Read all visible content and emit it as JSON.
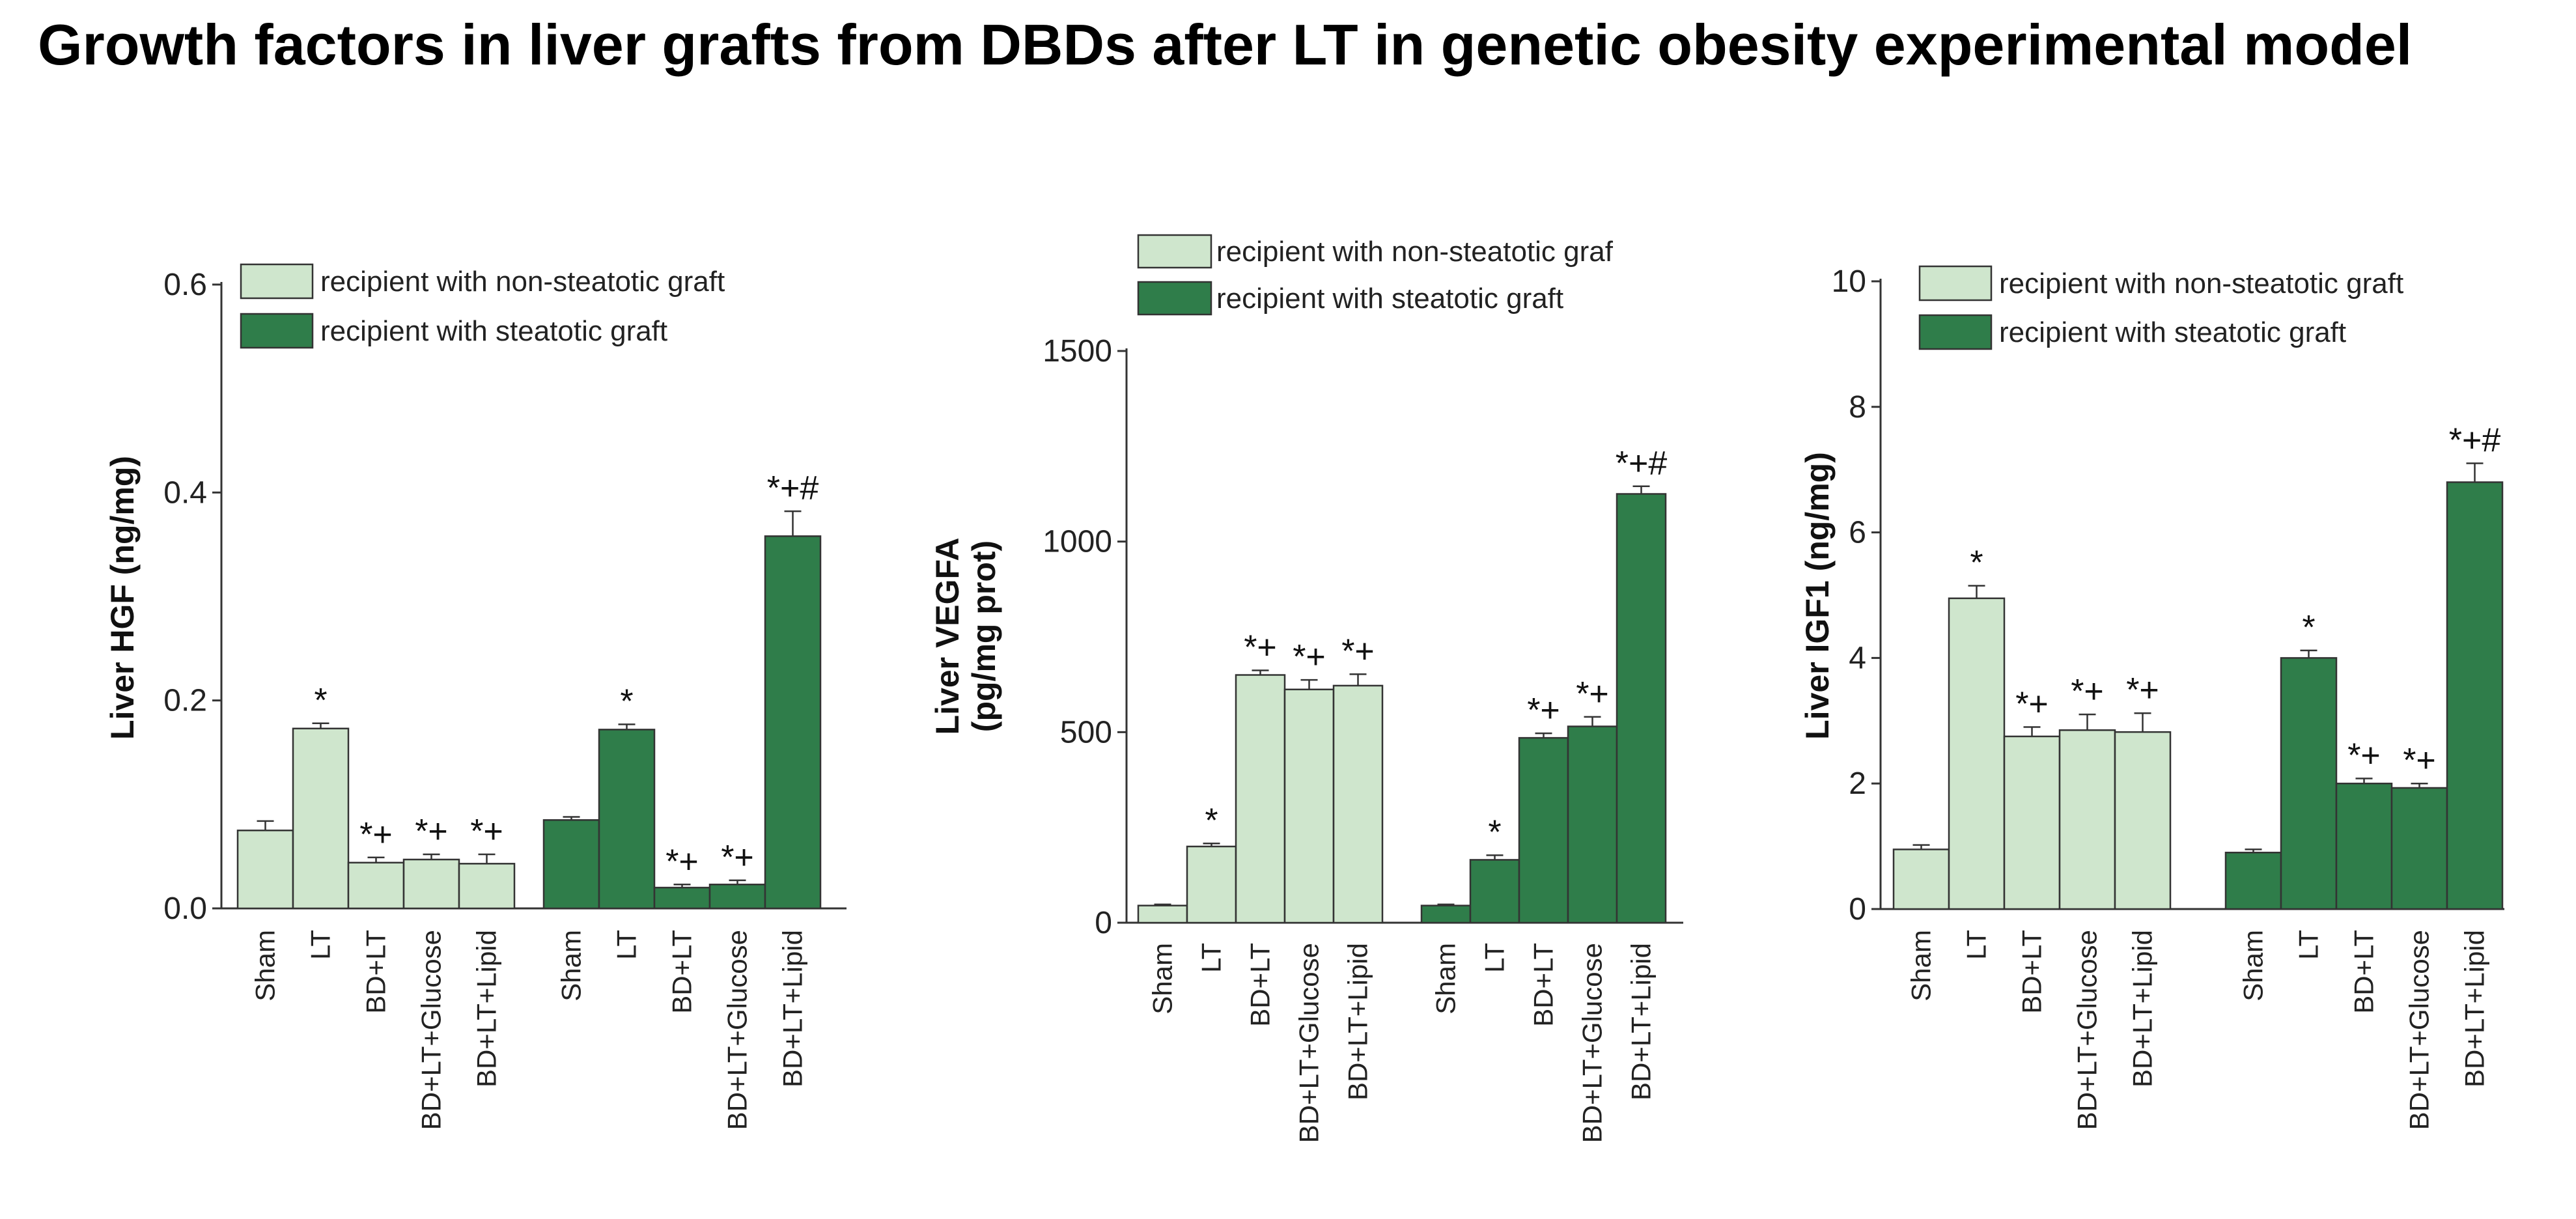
{
  "title": "Growth factors in liver grafts from DBDs after LT in genetic obesity experimental model",
  "colors": {
    "light": "#cfe6cd",
    "dark": "#2f7d4a",
    "axis": "#333333",
    "text": "#222222"
  },
  "chart_data": [
    {
      "type": "bar",
      "ylabel": [
        "Liver HGF (ng/mg)"
      ],
      "ylim": [
        0,
        0.6
      ],
      "yticks": [
        0.0,
        0.2,
        0.4,
        0.6
      ],
      "ytick_labels": [
        "0.0",
        "0.2",
        "0.4",
        "0.6"
      ],
      "legend": [
        "recipient with non-steatotic graft",
        "recipient with steatotic graft"
      ],
      "categories": [
        "Sham",
        "LT",
        "BD+LT",
        "BD+LT+Glucose",
        "BD+LT+Lipid"
      ],
      "series": [
        {
          "name": "recipient with non-steatotic graft",
          "values": [
            0.075,
            0.173,
            0.044,
            0.047,
            0.043
          ],
          "errors": [
            0.009,
            0.005,
            0.005,
            0.005,
            0.009
          ],
          "annotations": [
            "",
            "*",
            "*+",
            "*+",
            "*+"
          ]
        },
        {
          "name": "recipient with steatotic graft",
          "values": [
            0.085,
            0.172,
            0.02,
            0.023,
            0.358
          ],
          "errors": [
            0.003,
            0.005,
            0.003,
            0.004,
            0.024
          ],
          "annotations": [
            "",
            "*",
            "*+",
            "*+",
            "*+#"
          ]
        }
      ]
    },
    {
      "type": "bar",
      "ylabel": [
        "Liver VEGFA",
        "(pg/mg prot)"
      ],
      "ylim": [
        0,
        1500
      ],
      "yticks": [
        0,
        500,
        1000,
        1500
      ],
      "ytick_labels": [
        "0",
        "500",
        "1000",
        "1500"
      ],
      "legend": [
        "recipient with non-steatotic graf",
        "recipient with steatotic graft"
      ],
      "categories": [
        "Sham",
        "LT",
        "BD+LT",
        "BD+LT+Glucose",
        "BD+LT+Lipid"
      ],
      "series": [
        {
          "name": "recipient with non-steatotic graf",
          "values": [
            45,
            200,
            650,
            612,
            622
          ],
          "errors": [
            3,
            8,
            12,
            25,
            30
          ],
          "annotations": [
            "",
            "*",
            "*+",
            "*+",
            "*+"
          ]
        },
        {
          "name": "recipient with steatotic graft",
          "values": [
            45,
            165,
            485,
            515,
            1125
          ],
          "errors": [
            3,
            12,
            12,
            25,
            20
          ],
          "annotations": [
            "",
            "*",
            "*+",
            "*+",
            "*+#"
          ]
        }
      ]
    },
    {
      "type": "bar",
      "ylabel": [
        "Liver IGF1 (ng/mg)"
      ],
      "ylim": [
        0,
        10
      ],
      "yticks": [
        0,
        2,
        4,
        6,
        8,
        10
      ],
      "ytick_labels": [
        "0",
        "2",
        "4",
        "6",
        "8",
        "10"
      ],
      "legend": [
        "recipient with non-steatotic graft",
        "recipient with steatotic graft"
      ],
      "categories": [
        "Sham",
        "LT",
        "BD+LT",
        "BD+LT+Glucose",
        "BD+LT+Lipid"
      ],
      "series": [
        {
          "name": "recipient with non-steatotic graft",
          "values": [
            0.95,
            4.95,
            2.75,
            2.85,
            2.82
          ],
          "errors": [
            0.07,
            0.2,
            0.15,
            0.25,
            0.3
          ],
          "annotations": [
            "",
            "*",
            "*+",
            "*+",
            "*+"
          ]
        },
        {
          "name": "recipient with steatotic graft",
          "values": [
            0.9,
            4.0,
            2.0,
            1.93,
            6.8
          ],
          "errors": [
            0.05,
            0.12,
            0.08,
            0.07,
            0.3
          ],
          "annotations": [
            "",
            "*",
            "*+",
            "*+",
            "*+#"
          ]
        }
      ]
    }
  ]
}
